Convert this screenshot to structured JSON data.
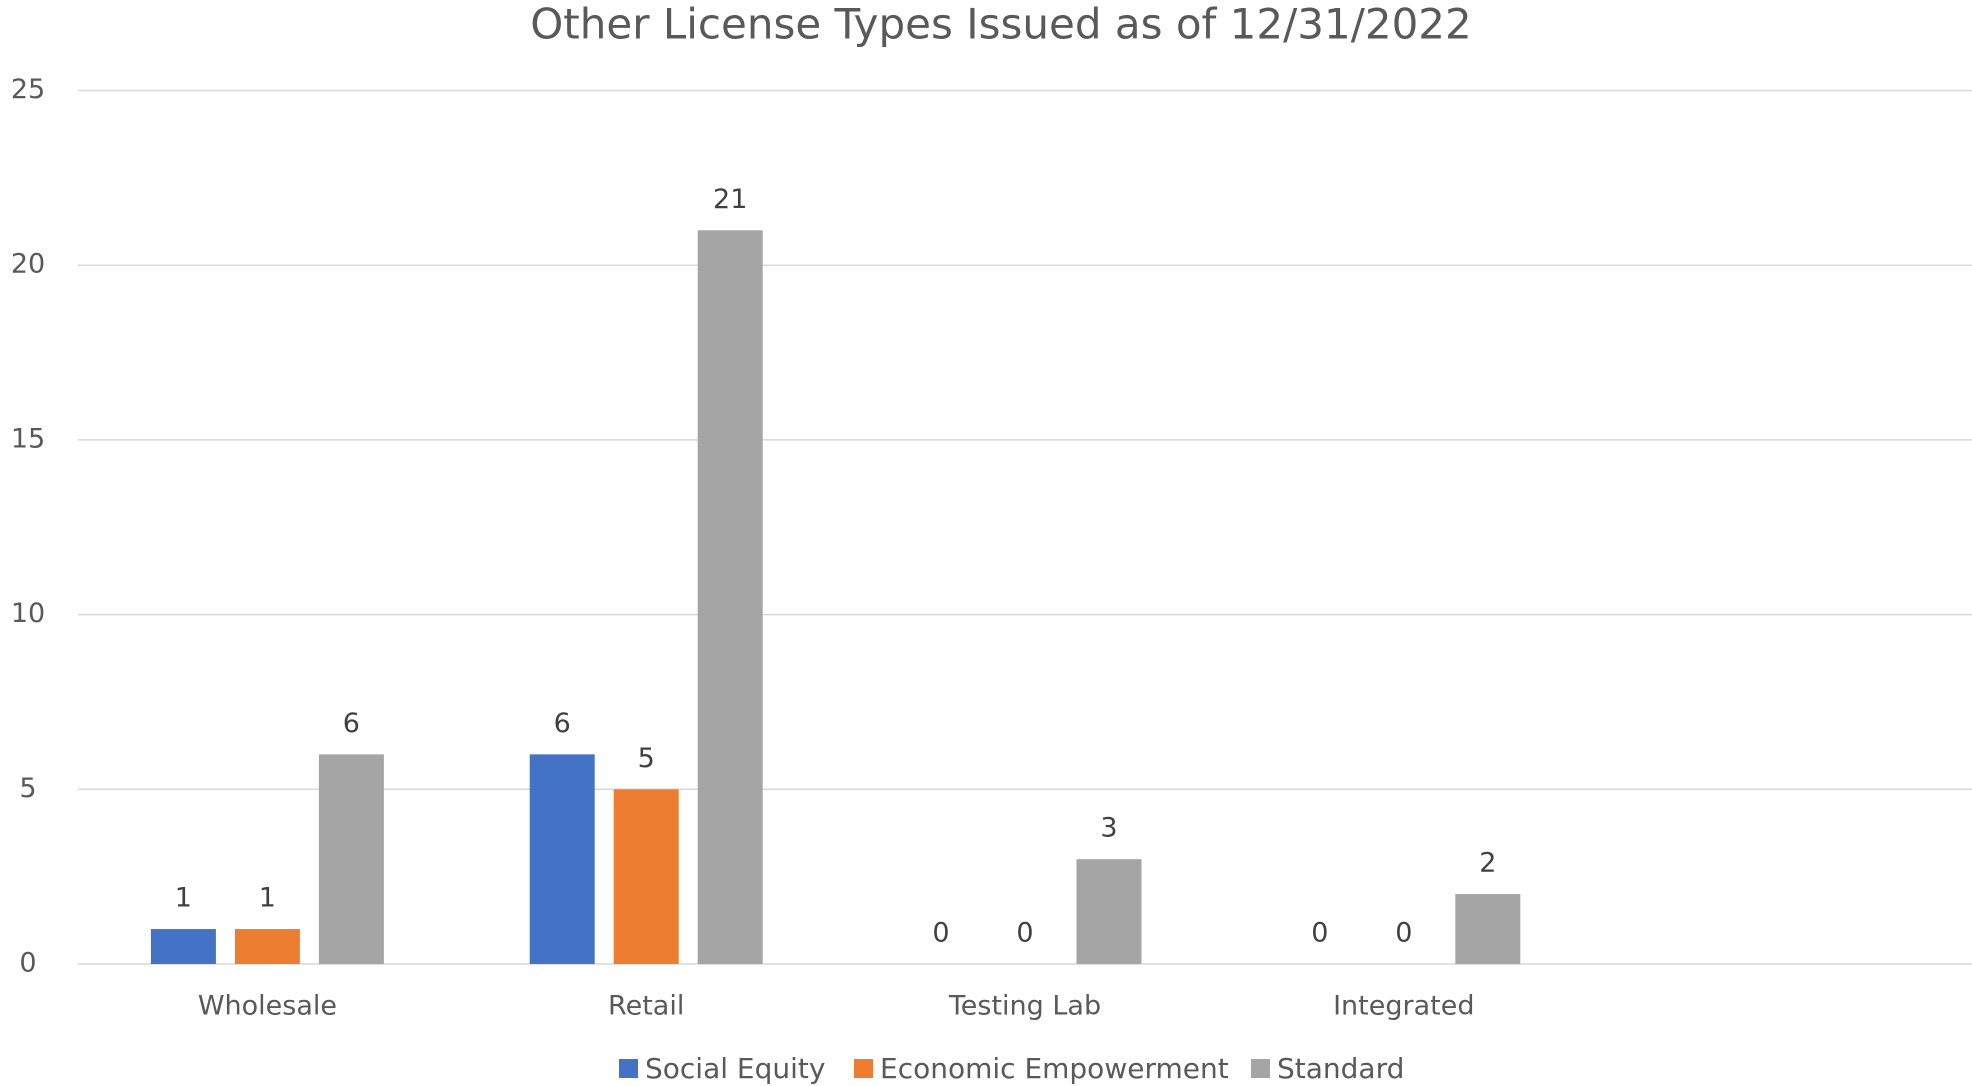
{
  "chart_data": {
    "type": "bar",
    "title": "Other License Types Issued as of 12/31/2022",
    "categories": [
      "Wholesale",
      "Retail",
      "Testing Lab",
      "Integrated",
      null
    ],
    "series": [
      {
        "name": "Social Equity",
        "color": "#4472c4",
        "values": [
          1,
          6,
          0,
          0,
          null
        ]
      },
      {
        "name": "Economic Empowerment",
        "color": "#ed7d31",
        "values": [
          1,
          5,
          0,
          0,
          null
        ]
      },
      {
        "name": "Standard",
        "color": "#a5a5a5",
        "values": [
          6,
          21,
          3,
          2,
          null
        ]
      }
    ],
    "ylim": [
      0,
      25
    ],
    "yticks": [
      0,
      5,
      10,
      15,
      20,
      25
    ],
    "grid": true,
    "legend": "bottom"
  }
}
